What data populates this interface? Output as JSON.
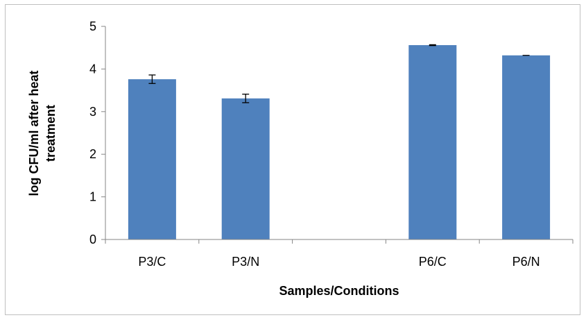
{
  "chart_data": {
    "type": "bar",
    "title": "",
    "xlabel": "Samples/Conditions",
    "ylabel_lines": [
      "log CFU/ml after heat",
      "treatment"
    ],
    "categories": [
      "P3/C",
      "P3/N",
      "",
      "P6/C",
      "P6/N"
    ],
    "values": [
      3.76,
      3.31,
      null,
      4.56,
      4.32
    ],
    "error": [
      0.1,
      0.1,
      null,
      0.01,
      0
    ],
    "ylim": [
      0,
      5
    ],
    "yticks": [
      "0",
      "1",
      "2",
      "3",
      "4",
      "5"
    ],
    "grid": false,
    "legend": "none",
    "bar_color": "#4f81bd"
  }
}
